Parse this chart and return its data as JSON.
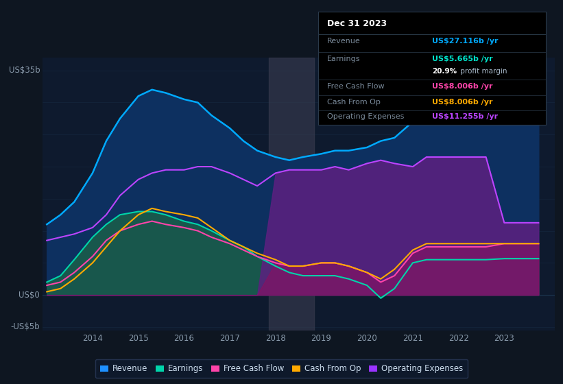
{
  "bg_color": "#0e1621",
  "plot_bg": "#0e1a2e",
  "title": "Dec 31 2023",
  "tooltip": {
    "Revenue": {
      "label": "Revenue",
      "value": "US$27.116b /yr",
      "color": "#00aaff"
    },
    "Earnings": {
      "label": "Earnings",
      "value": "US$5.665b /yr",
      "color": "#00e5cc"
    },
    "margin": "20.9%",
    "margin_text": " profit margin",
    "Free Cash Flow": {
      "label": "Free Cash Flow",
      "value": "US$8.006b /yr",
      "color": "#ff44aa"
    },
    "Cash From Op": {
      "label": "Cash From Op",
      "value": "US$8.006b /yr",
      "color": "#ffaa00"
    },
    "Operating Expenses": {
      "label": "Operating Expenses",
      "value": "US$11.255b /yr",
      "color": "#bb44ff"
    }
  },
  "legend": [
    {
      "label": "Revenue",
      "color": "#1e90ff"
    },
    {
      "label": "Earnings",
      "color": "#00d4aa"
    },
    {
      "label": "Free Cash Flow",
      "color": "#ff44aa"
    },
    {
      "label": "Cash From Op",
      "color": "#ffaa00"
    },
    {
      "label": "Operating Expenses",
      "color": "#9933ff"
    }
  ],
  "years": [
    2013.0,
    2013.3,
    2013.6,
    2014.0,
    2014.3,
    2014.6,
    2015.0,
    2015.3,
    2015.6,
    2016.0,
    2016.3,
    2016.6,
    2017.0,
    2017.3,
    2017.6,
    2018.0,
    2018.3,
    2018.6,
    2019.0,
    2019.3,
    2019.6,
    2020.0,
    2020.3,
    2020.6,
    2021.0,
    2021.3,
    2021.6,
    2022.0,
    2022.3,
    2022.6,
    2023.0,
    2023.3,
    2023.75
  ],
  "revenue": [
    11.0,
    12.5,
    14.5,
    19.0,
    24.0,
    27.5,
    31.0,
    32.0,
    31.5,
    30.5,
    30.0,
    28.0,
    26.0,
    24.0,
    22.5,
    21.5,
    21.0,
    21.5,
    22.0,
    22.5,
    22.5,
    23.0,
    24.0,
    24.5,
    27.0,
    27.5,
    27.5,
    27.0,
    27.0,
    27.5,
    27.116,
    27.116,
    27.116
  ],
  "earnings": [
    2.0,
    3.0,
    5.5,
    9.0,
    11.0,
    12.5,
    13.0,
    13.0,
    12.5,
    11.5,
    11.0,
    10.0,
    8.5,
    7.5,
    6.0,
    4.5,
    3.5,
    3.0,
    3.0,
    3.0,
    2.5,
    1.5,
    -0.5,
    1.0,
    5.0,
    5.5,
    5.5,
    5.5,
    5.5,
    5.5,
    5.665,
    5.665,
    5.665
  ],
  "free_cash_flow": [
    1.5,
    2.0,
    3.5,
    6.0,
    8.5,
    10.0,
    11.0,
    11.5,
    11.0,
    10.5,
    10.0,
    9.0,
    8.0,
    7.0,
    6.0,
    5.0,
    4.5,
    4.5,
    5.0,
    5.0,
    4.5,
    3.5,
    2.0,
    3.0,
    6.5,
    7.5,
    7.5,
    7.5,
    7.5,
    7.5,
    8.006,
    8.006,
    8.006
  ],
  "cash_from_op": [
    0.5,
    1.0,
    2.5,
    5.0,
    7.5,
    10.0,
    12.5,
    13.5,
    13.0,
    12.5,
    12.0,
    10.5,
    8.5,
    7.5,
    6.5,
    5.5,
    4.5,
    4.5,
    5.0,
    5.0,
    4.5,
    3.5,
    2.5,
    4.0,
    7.0,
    8.0,
    8.0,
    8.0,
    8.0,
    8.0,
    8.006,
    8.006,
    8.006
  ],
  "op_expenses": [
    8.5,
    9.0,
    9.5,
    10.5,
    12.5,
    15.5,
    18.0,
    19.0,
    19.5,
    19.5,
    20.0,
    20.0,
    19.0,
    18.0,
    17.0,
    19.0,
    19.5,
    19.5,
    19.5,
    20.0,
    19.5,
    20.5,
    21.0,
    20.5,
    20.0,
    21.5,
    21.5,
    21.5,
    21.5,
    21.5,
    11.255,
    11.255,
    11.255
  ],
  "ylim": [
    -5.5,
    37
  ],
  "xlim_start": 2012.9,
  "xlim_end": 2024.1,
  "gray_span": [
    2017.85,
    2018.85
  ],
  "xticks": [
    2014,
    2015,
    2016,
    2017,
    2018,
    2019,
    2020,
    2021,
    2022,
    2023
  ]
}
